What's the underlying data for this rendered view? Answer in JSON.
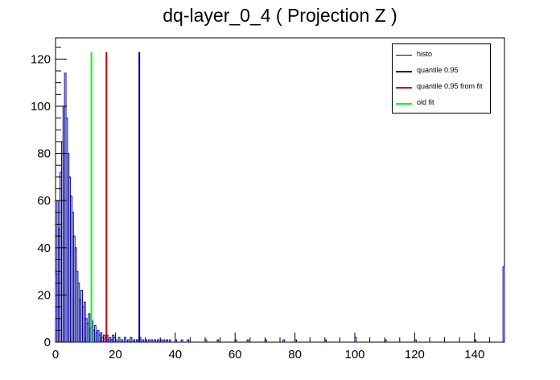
{
  "chart_data": {
    "type": "bar",
    "title": "dq-layer_0_4 ( Projection Z )",
    "xlabel": "",
    "ylabel": "",
    "xlim": [
      0,
      150
    ],
    "ylim": [
      0,
      129
    ],
    "x_ticks": [
      0,
      20,
      40,
      60,
      80,
      100,
      120,
      140
    ],
    "y_ticks": [
      0,
      20,
      40,
      60,
      80,
      100,
      120
    ],
    "grid": false,
    "legend_position": "top-right",
    "histogram": {
      "name": "histo",
      "color": "#000099",
      "bin_width": 0.5,
      "points": [
        [
          0.0,
          29
        ],
        [
          0.5,
          60
        ],
        [
          1.0,
          48
        ],
        [
          1.5,
          72
        ],
        [
          2.0,
          85
        ],
        [
          2.5,
          100
        ],
        [
          3.0,
          114
        ],
        [
          3.5,
          95
        ],
        [
          4.0,
          80
        ],
        [
          4.5,
          70
        ],
        [
          5.0,
          62
        ],
        [
          5.5,
          55
        ],
        [
          6.0,
          45
        ],
        [
          6.5,
          40
        ],
        [
          7.0,
          30
        ],
        [
          7.5,
          25
        ],
        [
          8.0,
          18
        ],
        [
          8.5,
          22
        ],
        [
          9.0,
          15
        ],
        [
          9.5,
          17
        ],
        [
          10.0,
          10
        ],
        [
          10.5,
          8
        ],
        [
          11.0,
          12
        ],
        [
          11.5,
          6
        ],
        [
          12.0,
          9
        ],
        [
          12.5,
          5
        ],
        [
          13.0,
          7
        ],
        [
          13.5,
          4
        ],
        [
          14.0,
          5
        ],
        [
          14.5,
          3
        ],
        [
          15.0,
          4
        ],
        [
          15.5,
          2
        ],
        [
          16.0,
          3
        ],
        [
          16.5,
          2
        ],
        [
          17.0,
          3
        ],
        [
          17.5,
          1
        ],
        [
          18.0,
          2
        ],
        [
          18.5,
          1
        ],
        [
          19.0,
          3
        ],
        [
          19.5,
          2
        ],
        [
          20.0,
          1
        ],
        [
          21.0,
          2
        ],
        [
          22.0,
          1
        ],
        [
          23.0,
          2
        ],
        [
          24.0,
          1
        ],
        [
          25.0,
          2
        ],
        [
          26.0,
          1
        ],
        [
          27.0,
          1
        ],
        [
          28.0,
          2
        ],
        [
          29.0,
          1
        ],
        [
          30.0,
          1
        ],
        [
          31.0,
          1
        ],
        [
          32.0,
          1
        ],
        [
          33.0,
          1
        ],
        [
          34.0,
          1
        ],
        [
          35.0,
          1
        ],
        [
          36.0,
          1
        ],
        [
          37.0,
          1
        ],
        [
          38.0,
          1
        ],
        [
          40.0,
          1
        ],
        [
          42.0,
          1
        ],
        [
          44.0,
          1
        ],
        [
          50.0,
          1
        ],
        [
          54.0,
          1
        ],
        [
          60.0,
          1
        ],
        [
          64.0,
          1
        ],
        [
          70.0,
          1
        ],
        [
          76.0,
          1
        ],
        [
          80.0,
          1
        ],
        [
          90.0,
          1
        ],
        [
          100.0,
          2
        ],
        [
          110.0,
          1
        ],
        [
          120.0,
          1
        ],
        [
          140.0,
          1
        ],
        [
          149.5,
          32
        ]
      ]
    },
    "vertical_lines": [
      {
        "name": "quantile 0.95",
        "x": 28.0,
        "color": "#000099",
        "y_top": 123
      },
      {
        "name": "quantile 0.95 from fit",
        "x": 17.0,
        "color": "#cc0000",
        "y_top": 123
      },
      {
        "name": "old fit",
        "x": 12.0,
        "color": "#00ff00",
        "y_top": 123
      }
    ],
    "legend": [
      {
        "label": "histo",
        "color": "#000099",
        "thick": false
      },
      {
        "label": "quantile 0.95",
        "color": "#000099",
        "thick": true
      },
      {
        "label": "quantile 0.95 from fit",
        "color": "#cc0000",
        "thick": true
      },
      {
        "label": "old fit",
        "color": "#00ff00",
        "thick": true
      }
    ]
  }
}
